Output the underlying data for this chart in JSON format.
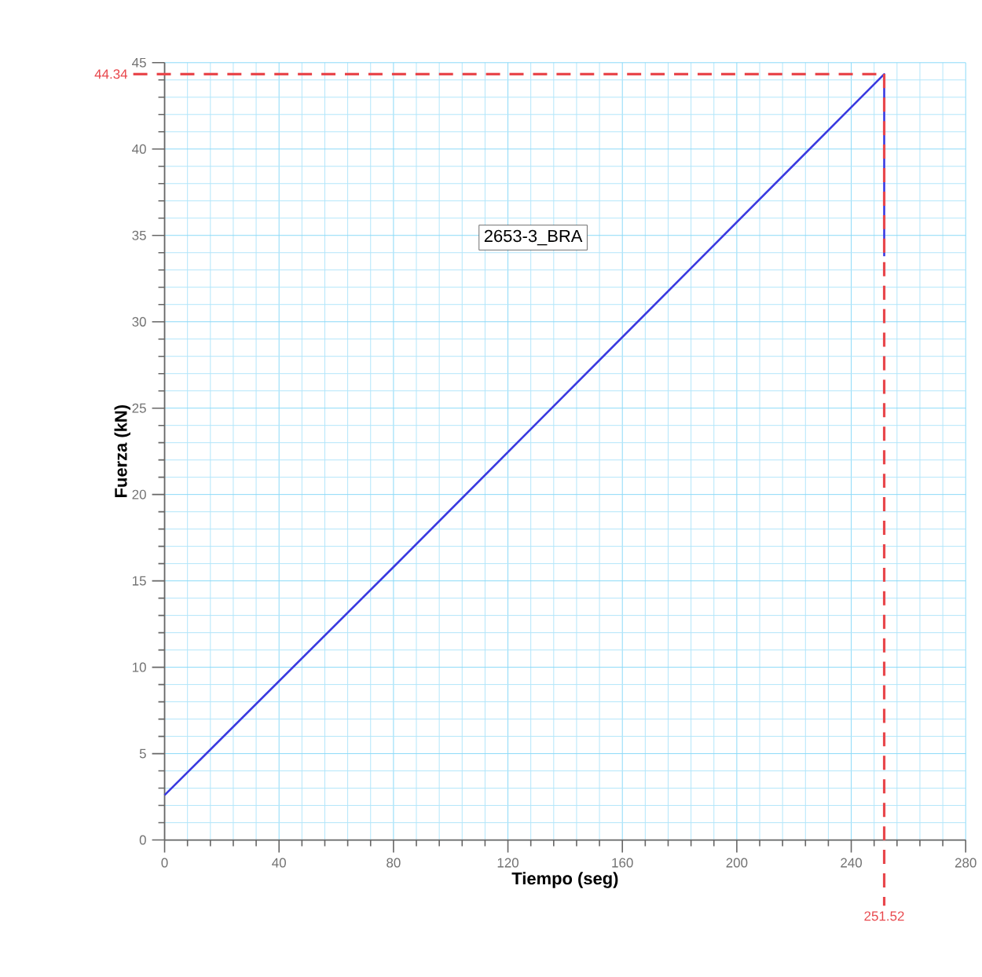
{
  "chart_data": {
    "type": "line",
    "xlabel": "Tiempo (seg)",
    "ylabel": "Fuerza (kN)",
    "annotations": [
      "2653-3_BRA"
    ],
    "x": [
      0,
      80,
      251.52,
      251.52
    ],
    "series": [
      {
        "color": "#3a3ae0",
        "values": [
          2.6,
          15.8,
          44.34,
          33.8
        ]
      }
    ],
    "xlim": [
      0,
      280
    ],
    "ylim": [
      0,
      45
    ],
    "xticks": [
      0,
      {
        "value": 8,
        "label": null
      },
      {
        "value": 16,
        "label": null
      },
      {
        "value": 24,
        "label": null
      },
      {
        "value": 32,
        "label": null
      },
      40,
      {
        "value": 48,
        "label": null
      },
      {
        "value": 56,
        "label": null
      },
      {
        "value": 64,
        "label": null
      },
      {
        "value": 72,
        "label": null
      },
      80,
      {
        "value": 88,
        "label": null
      },
      {
        "value": 96,
        "label": null
      },
      {
        "value": 104,
        "label": null
      },
      {
        "value": 112,
        "label": null
      },
      120,
      {
        "value": 128,
        "label": null
      },
      {
        "value": 136,
        "label": null
      },
      {
        "value": 144,
        "label": null
      },
      {
        "value": 152,
        "label": null
      },
      160,
      {
        "value": 168,
        "label": null
      },
      {
        "value": 176,
        "label": null
      },
      {
        "value": 184,
        "label": null
      },
      {
        "value": 192,
        "label": null
      },
      200,
      {
        "value": 208,
        "label": null
      },
      {
        "value": 216,
        "label": null
      },
      {
        "value": 224,
        "label": null
      },
      {
        "value": 232,
        "label": null
      },
      240,
      {
        "value": 248,
        "label": null
      },
      {
        "value": 256,
        "label": null
      },
      {
        "value": 264,
        "label": null
      },
      {
        "value": 272,
        "label": null
      },
      280
    ],
    "yticks": [
      0,
      {
        "value": 1,
        "label": null
      },
      {
        "value": 2,
        "label": null
      },
      {
        "value": 3,
        "label": null
      },
      {
        "value": 4,
        "label": null
      },
      5,
      {
        "value": 6,
        "label": null
      },
      {
        "value": 7,
        "label": null
      },
      {
        "value": 8,
        "label": null
      },
      {
        "value": 9,
        "label": null
      },
      10,
      {
        "value": 11,
        "label": null
      },
      {
        "value": 12,
        "label": null
      },
      {
        "value": 13,
        "label": null
      },
      {
        "value": 14,
        "label": null
      },
      15,
      {
        "value": 16,
        "label": null
      },
      {
        "value": 17,
        "label": null
      },
      {
        "value": 18,
        "label": null
      },
      {
        "value": 19,
        "label": null
      },
      20,
      {
        "value": 21,
        "label": null
      },
      {
        "value": 22,
        "label": null
      },
      {
        "value": 23,
        "label": null
      },
      {
        "value": 24,
        "label": null
      },
      25,
      {
        "value": 26,
        "label": null
      },
      {
        "value": 27,
        "label": null
      },
      {
        "value": 28,
        "label": null
      },
      {
        "value": 29,
        "label": null
      },
      30,
      {
        "value": 31,
        "label": null
      },
      {
        "value": 32,
        "label": null
      },
      {
        "value": 33,
        "label": null
      },
      {
        "value": 34,
        "label": null
      },
      35,
      {
        "value": 36,
        "label": null
      },
      {
        "value": 37,
        "label": null
      },
      {
        "value": 38,
        "label": null
      },
      {
        "value": 39,
        "label": null
      },
      40,
      {
        "value": 41,
        "label": null
      },
      {
        "value": 42,
        "label": null
      },
      {
        "value": 43,
        "label": null
      },
      {
        "value": 44,
        "label": null
      },
      45
    ],
    "ref_lines": [
      {
        "axis": "y",
        "value": 44.34,
        "label": "44.34",
        "color": "#e8474c",
        "line_style": "dashed"
      },
      {
        "axis": "x",
        "value": 251.52,
        "label": "251.52",
        "color": "#e8474c",
        "line_style": "dashed"
      }
    ],
    "grid": true,
    "marker": "none",
    "line_style": "solid"
  }
}
